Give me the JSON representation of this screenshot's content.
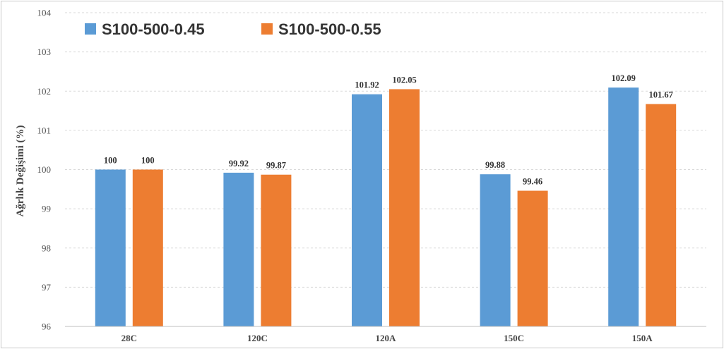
{
  "chart_data": {
    "type": "bar",
    "categories": [
      "28C",
      "120C",
      "120A",
      "150C",
      "150A"
    ],
    "series": [
      {
        "name": "S100-500-0.45",
        "color": "#5b9bd5",
        "values": [
          100,
          99.92,
          101.92,
          99.88,
          102.09
        ],
        "labels": [
          "100",
          "99.92",
          "101.92",
          "99.88",
          "102.09"
        ]
      },
      {
        "name": "S100-500-0.55",
        "color": "#ed7d31",
        "values": [
          100,
          99.87,
          102.05,
          99.46,
          101.67
        ],
        "labels": [
          "100",
          "99.87",
          "102.05",
          "99.46",
          "101.67"
        ]
      }
    ],
    "ylabel": "Ağrlık Değişimi (%)",
    "xlabel": "",
    "ylim": [
      96,
      104
    ],
    "yticks": [
      96,
      97,
      98,
      99,
      100,
      101,
      102,
      103,
      104
    ],
    "grid": true,
    "legend_position": "top-left"
  }
}
